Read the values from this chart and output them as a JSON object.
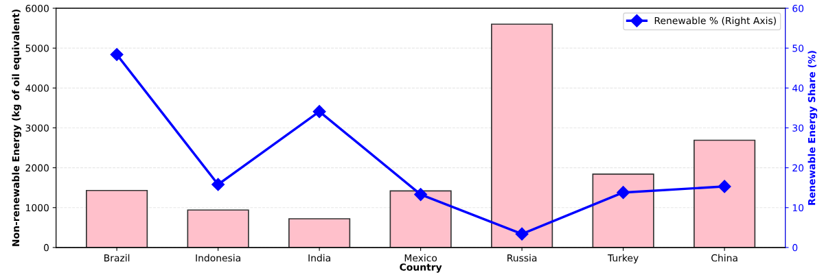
{
  "chart_data": {
    "type": "bar",
    "xlabel": "Country",
    "ylabel": "Non-renewable Energy (kg of oil equivalent)",
    "y2label": "Renewable Energy Share (%)",
    "categories": [
      "Brazil",
      "Indonesia",
      "India",
      "Mexico",
      "Russia",
      "Turkey",
      "China"
    ],
    "series": [
      {
        "color": "#ffc0cb",
        "values": [
          1430,
          940,
          720,
          1420,
          5600,
          1840,
          2690
        ]
      },
      {
        "type": "line",
        "name": "Renewable % (Right Axis)",
        "color": "#0000ff",
        "axis": "y2",
        "marker": "diamond",
        "values": [
          48.4,
          15.8,
          34.1,
          13.3,
          3.4,
          13.8,
          15.3
        ]
      }
    ],
    "ylim": [
      0,
      6000
    ],
    "yticks": [
      0,
      1000,
      2000,
      3000,
      4000,
      5000,
      6000
    ],
    "y2lim": [
      0,
      60
    ],
    "y2ticks": [
      0,
      10,
      20,
      30,
      40,
      50,
      60
    ],
    "grid": "y",
    "legend": "top right"
  }
}
